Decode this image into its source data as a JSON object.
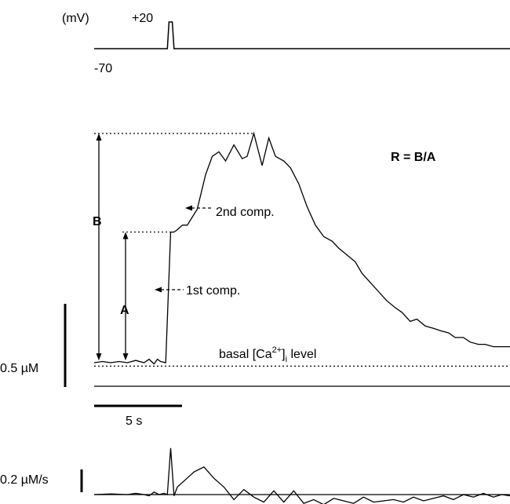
{
  "chart_data": [
    {
      "type": "line",
      "panel": "voltage-protocol",
      "unit_label": "(mV)",
      "holding_label": "-70",
      "step_label": "+20",
      "series": [
        {
          "x": [
            0,
            4.4,
            4.5,
            4.7,
            4.8,
            25
          ],
          "values": [
            -70,
            -70,
            20,
            20,
            -70,
            -70
          ]
        }
      ]
    },
    {
      "type": "line",
      "panel": "calcium-transient",
      "formula": "R = B/A",
      "label_a": "A",
      "label_b": "B",
      "first_comp_label": "1st comp.",
      "second_comp_label": "2nd comp.",
      "basal_label_prefix": "basal [Ca",
      "basal_label_sup": "2+",
      "basal_label_sub": "i",
      "basal_label_suffix": " level",
      "scale_y_label": "0.5 µM",
      "scale_x_label": "5 s",
      "baseline_uM": 0,
      "peak_A_uM": 0.57,
      "peak_B_uM": 1.0,
      "series": [
        {
          "x": [
            0,
            0.5,
            1,
            1.5,
            2,
            2.5,
            3,
            3.3,
            3.6,
            3.8,
            4.0,
            4.3,
            4.6,
            4.8,
            5.0,
            5.3,
            5.6,
            6.2,
            6.7,
            7.1,
            7.5,
            7.9,
            8.4,
            8.9,
            9.2,
            9.6,
            10.1,
            10.5,
            10.9,
            11.4,
            11.8,
            12.3,
            12.8,
            13.3,
            13.8,
            14.3,
            14.7,
            15.2,
            15.7,
            16.1,
            16.6,
            17.1,
            17.6,
            18.1,
            18.5,
            19.0,
            19.4,
            19.9,
            20.4,
            20.8,
            21.3,
            21.7,
            22.2,
            22.6,
            23.1,
            23.5,
            24.0,
            24.5,
            25.0
          ],
          "values": [
            0.0,
            0.005,
            0.0,
            0.005,
            0.0,
            0.01,
            0.0,
            0.015,
            -0.005,
            0.015,
            0.005,
            0.0,
            0.57,
            0.57,
            0.58,
            0.6,
            0.6,
            0.67,
            0.82,
            0.9,
            0.92,
            0.88,
            0.95,
            0.89,
            0.9,
            1.0,
            0.86,
            0.98,
            0.9,
            0.88,
            0.85,
            0.78,
            0.68,
            0.6,
            0.55,
            0.53,
            0.5,
            0.47,
            0.44,
            0.39,
            0.35,
            0.31,
            0.27,
            0.24,
            0.22,
            0.18,
            0.19,
            0.16,
            0.15,
            0.14,
            0.13,
            0.11,
            0.11,
            0.09,
            0.08,
            0.08,
            0.07,
            0.07,
            0.07
          ]
        }
      ]
    },
    {
      "type": "line",
      "panel": "rate-of-rise",
      "scale_y_label": "0.2 µM/s",
      "series": [
        {
          "x": [
            0,
            1,
            2,
            2.5,
            3,
            3.3,
            3.6,
            3.9,
            4.2,
            4.4,
            4.6,
            4.8,
            5.0,
            5.5,
            6.0,
            6.6,
            7.2,
            7.8,
            8.4,
            9.0,
            9.6,
            10.2,
            10.8,
            11.4,
            12.0,
            12.6,
            13.2,
            13.8,
            14.4,
            15.0,
            15.6,
            16.2,
            16.8,
            17.4,
            18.0,
            18.6,
            19.2,
            19.8,
            20.4,
            21.0,
            21.6,
            22.2,
            22.8,
            23.4,
            24.0,
            24.5,
            25.0
          ],
          "values": [
            0.0,
            0.005,
            0.0,
            0.01,
            0.0,
            -0.01,
            0.02,
            0.0,
            0.01,
            0.0,
            0.37,
            -0.01,
            0.06,
            0.12,
            0.18,
            0.22,
            0.13,
            0.06,
            -0.04,
            0.04,
            -0.02,
            -0.06,
            0.03,
            -0.06,
            0.03,
            -0.07,
            -0.04,
            -0.08,
            -0.03,
            -0.05,
            -0.07,
            -0.02,
            -0.06,
            -0.05,
            -0.04,
            -0.06,
            -0.02,
            -0.05,
            -0.03,
            -0.01,
            -0.04,
            0.0,
            -0.02,
            0.01,
            -0.02,
            0.0,
            -0.01
          ]
        }
      ]
    }
  ]
}
